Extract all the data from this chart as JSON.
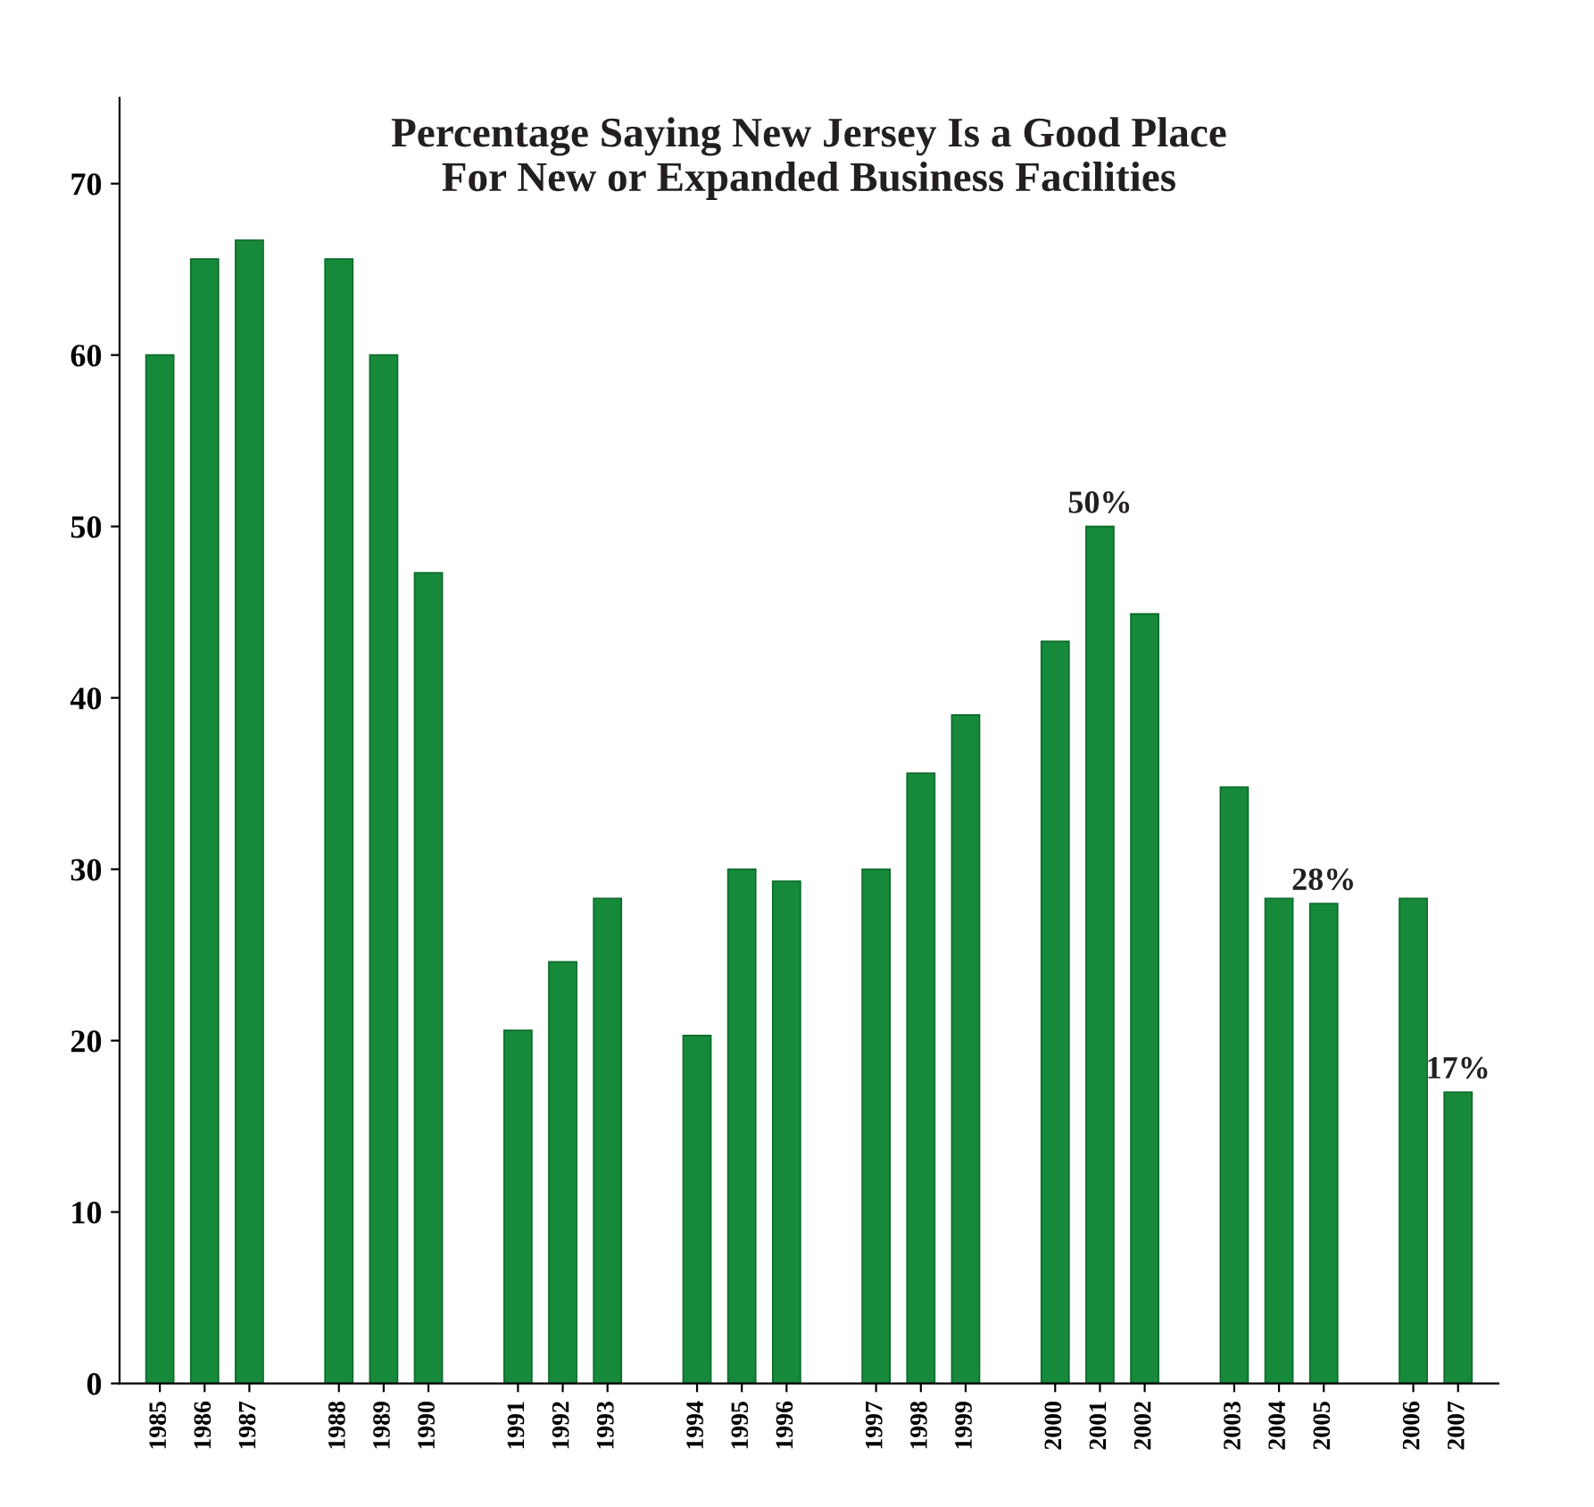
{
  "chart_data": {
    "type": "bar",
    "title": "Percentage Saying New Jersey Is a Good Place\nFor New or Expanded Business Facilities",
    "categories": [
      "1985",
      "1986",
      "1987",
      null,
      "1988",
      "1989",
      "1990",
      null,
      "1991",
      "1992",
      "1993",
      null,
      "1994",
      "1995",
      "1996",
      null,
      "1997",
      "1998",
      "1999",
      null,
      "2000",
      "2001",
      "2002",
      null,
      "2003",
      "2004",
      "2005",
      null,
      "2006",
      "2007"
    ],
    "values": [
      60,
      65.6,
      66.7,
      null,
      65.6,
      60,
      47.3,
      null,
      20.6,
      24.6,
      28.3,
      null,
      20.3,
      30,
      29.3,
      null,
      30,
      35.6,
      39,
      null,
      43.3,
      50,
      44.9,
      null,
      34.8,
      28.3,
      28,
      null,
      28.3,
      17
    ],
    "value_labels": [
      null,
      null,
      null,
      null,
      null,
      null,
      null,
      null,
      null,
      null,
      null,
      null,
      null,
      null,
      null,
      null,
      null,
      null,
      null,
      null,
      null,
      "50%",
      null,
      null,
      null,
      null,
      "28%",
      null,
      null,
      "17%"
    ],
    "color": "#168a3a",
    "ylim": [
      0,
      75
    ],
    "yticks": [
      0,
      10,
      20,
      30,
      40,
      50,
      60,
      70
    ],
    "grid": false,
    "legend": false
  }
}
